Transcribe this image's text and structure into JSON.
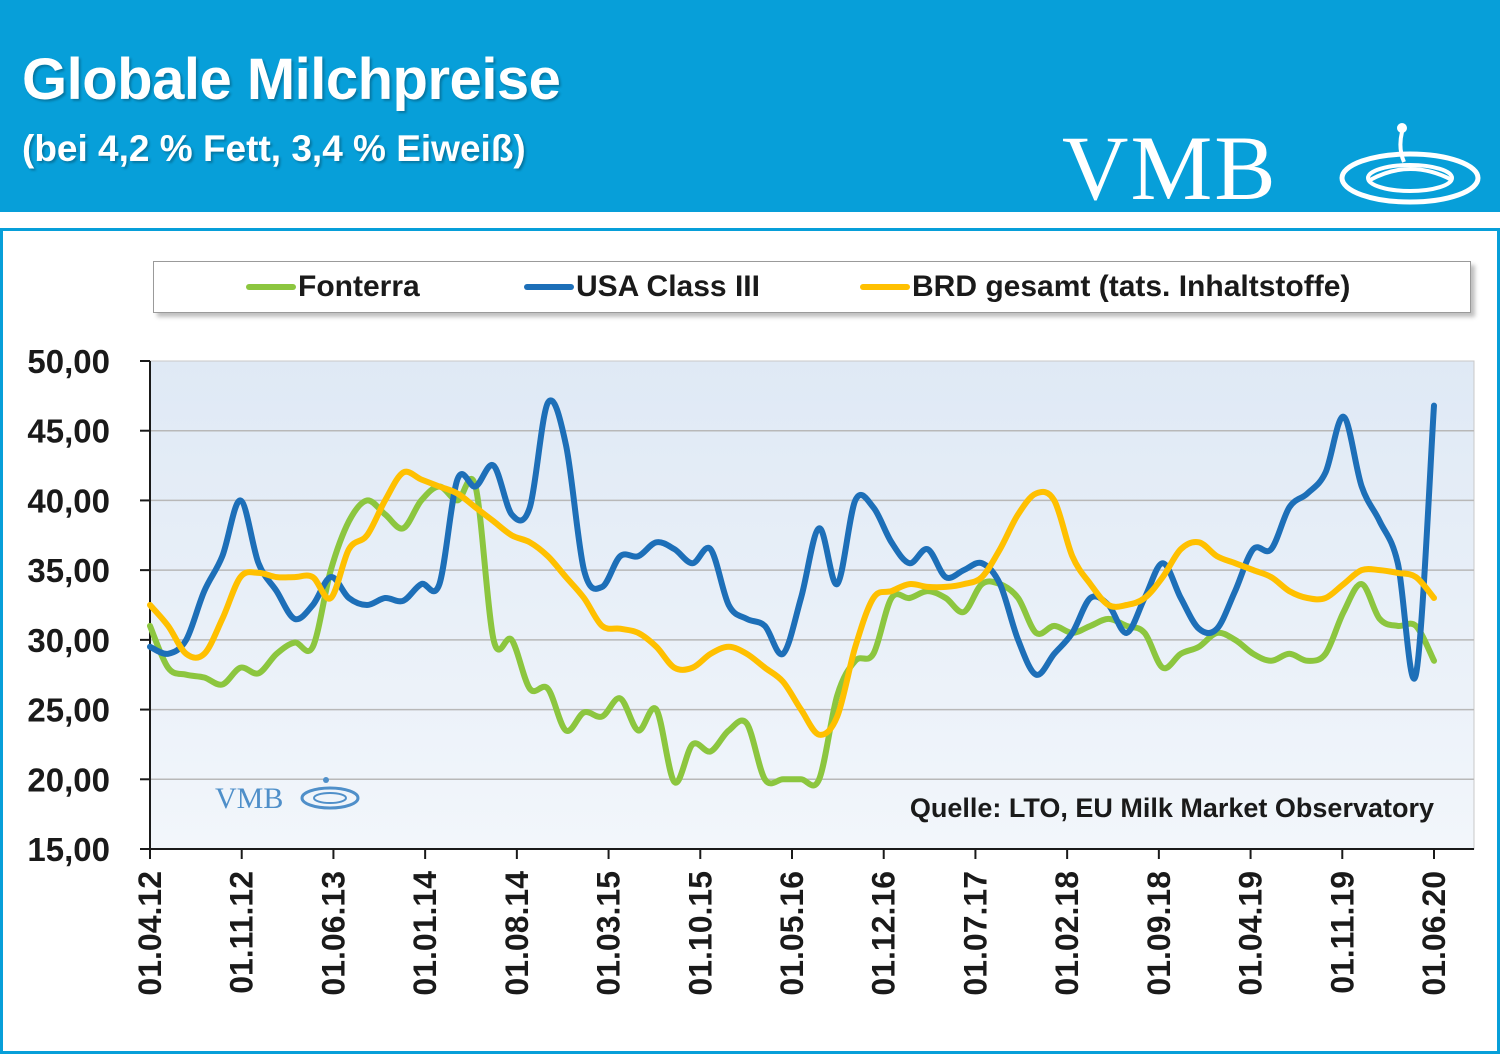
{
  "header": {
    "title": "Globale Milchpreise",
    "subtitle": "(bei 4,2 % Fett, 3,4 % Eiweiß)",
    "logo_text": "VMB",
    "background_color": "#079fd9"
  },
  "chart_data": {
    "type": "line",
    "ylim": [
      15,
      50
    ],
    "y_ticks": [
      "50,00",
      "45,00",
      "40,00",
      "35,00",
      "30,00",
      "25,00",
      "20,00",
      "15,00"
    ],
    "x_tick_labels": [
      "01.04.12",
      "01.11.12",
      "01.06.13",
      "01.01.14",
      "01.08.14",
      "01.03.15",
      "01.10.15",
      "01.05.16",
      "01.12.16",
      "01.07.17",
      "01.02.18",
      "01.09.18",
      "01.04.19",
      "01.11.19",
      "01.06.20"
    ],
    "grid": true,
    "legend_position": "top",
    "source_note": "Quelle:  LTO, EU Milk Market Observatory",
    "watermark_text": "VMB",
    "series": [
      {
        "name": "Fonterra",
        "color": "#8cc63f",
        "values": [
          31.0,
          28.0,
          27.5,
          27.3,
          26.8,
          28.0,
          27.6,
          29.0,
          29.8,
          29.5,
          35.0,
          38.5,
          40.0,
          39.0,
          38.0,
          40.0,
          41.0,
          40.0,
          41.0,
          30.0,
          30.0,
          26.5,
          26.5,
          23.5,
          24.8,
          24.5,
          25.8,
          23.5,
          25.0,
          19.8,
          22.5,
          22.0,
          23.5,
          24.0,
          20.0,
          20.0,
          20.0,
          20.0,
          26.0,
          28.5,
          29.0,
          33.0,
          33.0,
          33.5,
          33.0,
          32.0,
          34.0,
          34.0,
          33.0,
          30.5,
          31.0,
          30.5,
          31.0,
          31.5,
          31.0,
          30.5,
          28.0,
          29.0,
          29.5,
          30.5,
          30.0,
          29.0,
          28.5,
          29.0,
          28.5,
          29.0,
          32.0,
          34.0,
          31.5,
          31.0,
          31.0,
          28.5
        ]
      },
      {
        "name": "USA Class III",
        "color": "#1d6fb8",
        "values": [
          29.5,
          29.0,
          30.0,
          33.5,
          36.0,
          40.0,
          35.5,
          33.5,
          31.5,
          32.5,
          34.5,
          33.0,
          32.5,
          33.0,
          32.8,
          34.0,
          34.0,
          41.5,
          41.0,
          42.5,
          39.0,
          39.5,
          47.0,
          44.0,
          35.0,
          33.8,
          36.0,
          36.0,
          37.0,
          36.5,
          35.5,
          36.5,
          32.5,
          31.5,
          31.0,
          29.0,
          33.0,
          38.0,
          34.0,
          40.0,
          39.5,
          37.0,
          35.5,
          36.5,
          34.5,
          35.0,
          35.5,
          34.0,
          30.0,
          27.5,
          29.0,
          30.5,
          33.0,
          32.5,
          30.5,
          33.0,
          35.5,
          33.0,
          30.8,
          30.8,
          33.5,
          36.5,
          36.5,
          39.5,
          40.5,
          42.0,
          46.0,
          41.0,
          38.5,
          35.5,
          27.5,
          46.8
        ]
      },
      {
        "name": "BRD gesamt (tats. Inhaltstoffe)",
        "color": "#ffc000",
        "values": [
          32.5,
          31.0,
          29.0,
          29.0,
          31.5,
          34.5,
          34.8,
          34.5,
          34.5,
          34.5,
          33.0,
          36.5,
          37.5,
          40.0,
          42.0,
          41.5,
          41.0,
          40.5,
          39.5,
          38.5,
          37.5,
          37.0,
          36.0,
          34.5,
          33.0,
          31.0,
          30.8,
          30.5,
          29.5,
          28.0,
          28.0,
          29.0,
          29.5,
          29.0,
          28.0,
          27.0,
          25.0,
          23.2,
          24.5,
          29.5,
          33.0,
          33.5,
          34.0,
          33.8,
          33.8,
          34.0,
          34.5,
          36.5,
          39.0,
          40.5,
          40.0,
          36.0,
          34.0,
          32.5,
          32.5,
          33.0,
          34.5,
          36.5,
          37.0,
          36.0,
          35.5,
          35.0,
          34.5,
          33.5,
          33.0,
          33.0,
          34.0,
          35.0,
          35.0,
          34.8,
          34.5,
          33.0
        ]
      }
    ]
  }
}
